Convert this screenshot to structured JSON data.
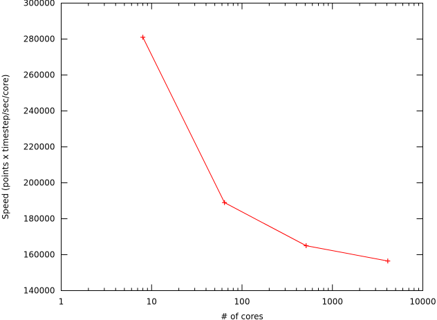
{
  "chart_data": {
    "type": "line",
    "title": "",
    "xlabel": "# of cores",
    "ylabel": "Speed (points x timestep/sec/core)",
    "xscale": "log",
    "xlim": [
      1,
      10000
    ],
    "ylim": [
      140000,
      300000
    ],
    "grid": false,
    "legend": "none",
    "xticks": [
      {
        "value": 1,
        "label": "1"
      },
      {
        "value": 10,
        "label": "10"
      },
      {
        "value": 100,
        "label": "100"
      },
      {
        "value": 1000,
        "label": "1000"
      },
      {
        "value": 10000,
        "label": "10000"
      }
    ],
    "yticks": [
      {
        "value": 140000,
        "label": "140000"
      },
      {
        "value": 160000,
        "label": "160000"
      },
      {
        "value": 180000,
        "label": "180000"
      },
      {
        "value": 200000,
        "label": "200000"
      },
      {
        "value": 220000,
        "label": "220000"
      },
      {
        "value": 240000,
        "label": "240000"
      },
      {
        "value": 260000,
        "label": "260000"
      },
      {
        "value": 280000,
        "label": "280000"
      },
      {
        "value": 300000,
        "label": "300000"
      }
    ],
    "series": [
      {
        "color": "#ff0000",
        "marker": "plus",
        "x": [
          8,
          64,
          512,
          4096
        ],
        "y": [
          281000,
          189000,
          165000,
          156500
        ]
      }
    ]
  }
}
